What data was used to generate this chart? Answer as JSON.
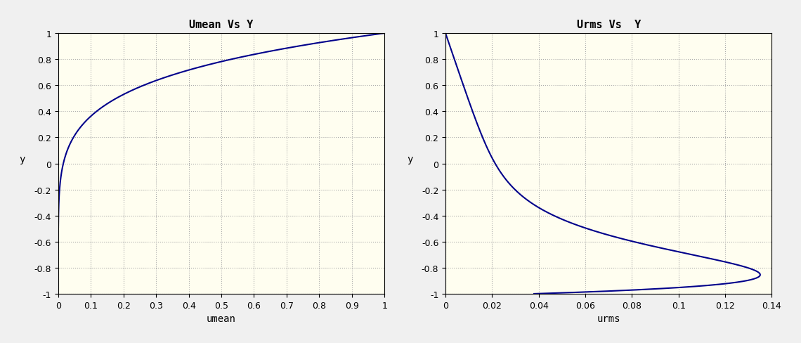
{
  "left_title": "Umean Vs Y",
  "right_title": "Urms Vs  Y",
  "left_xlabel": "umean",
  "right_xlabel": "urms",
  "ylabel": "y",
  "left_xlim": [
    0,
    1
  ],
  "right_xlim": [
    0,
    0.14
  ],
  "ylim": [
    -1,
    1
  ],
  "left_xticks": [
    0,
    0.1,
    0.2,
    0.3,
    0.4,
    0.5,
    0.6,
    0.7,
    0.8,
    0.9,
    1.0
  ],
  "right_xticks": [
    0,
    0.02,
    0.04,
    0.06,
    0.08,
    0.1,
    0.12,
    0.14
  ],
  "yticks": [
    -1,
    -0.8,
    -0.6,
    -0.4,
    -0.2,
    0,
    0.2,
    0.4,
    0.6,
    0.8,
    1.0
  ],
  "line_color": "#00008B",
  "line_width": 1.5,
  "grid_color": "#AAAAAA",
  "grid_style": ":",
  "bg_color": "#FFFEF0",
  "title_fontsize": 11,
  "label_fontsize": 10,
  "tick_fontsize": 9,
  "umean_power": 6.0,
  "urms_peak_eta": 0.075,
  "urms_peak_val": 0.135,
  "urms_base_val": 0.038
}
